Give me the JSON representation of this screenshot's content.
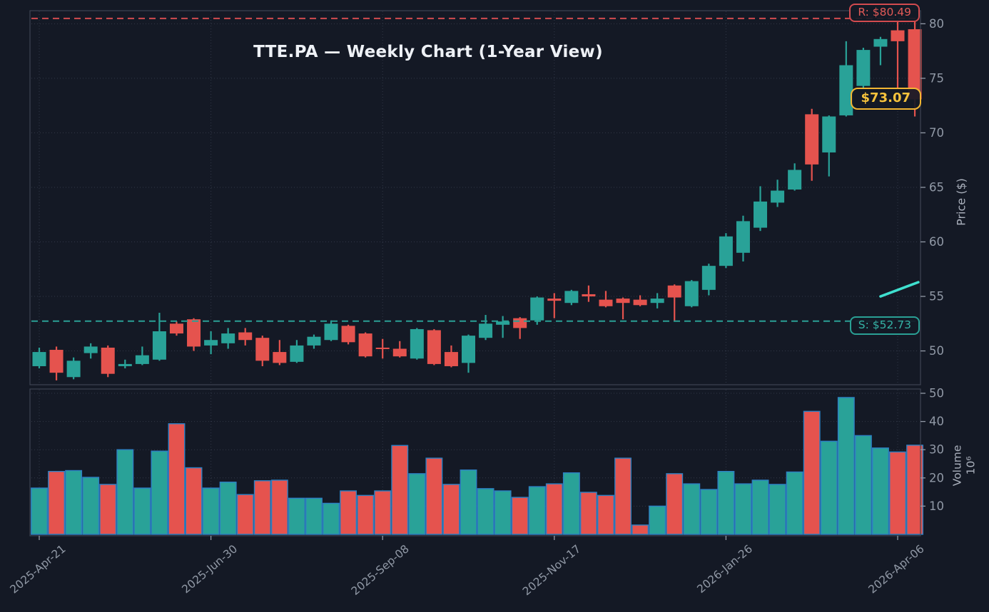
{
  "title": "TTE.PA — Weekly Chart (1-Year View)",
  "colors": {
    "background": "#141925",
    "up": "#29a298",
    "down": "#e5534e",
    "volume_border": "#2d80c4",
    "grid": "#4a5163",
    "spine": "#3e4453",
    "tick_text": "#9199a6",
    "title_text": "#eef1f6",
    "resistance": "#d24b4f",
    "support": "#2aa095",
    "last_price": "#f2b632",
    "trend": "#3fe0cf"
  },
  "price_axis": {
    "label": "Price ($)",
    "ticks": [
      50,
      55,
      60,
      65,
      70,
      75,
      80
    ]
  },
  "volume_axis": {
    "label": "Volume",
    "unit": "10⁶",
    "ticks": [
      10,
      20,
      30,
      40,
      50
    ]
  },
  "x_axis": {
    "tick_weeks": [
      0,
      10,
      20,
      30,
      40,
      50
    ],
    "tick_labels": [
      "2025-Apr-21",
      "2025-Jun-30",
      "2025-Sep-08",
      "2025-Nov-17",
      "2026-Jan-26",
      "2026-Apr-06"
    ]
  },
  "annotations": {
    "resistance": {
      "label": "R: $80.49",
      "price": 80.49
    },
    "support": {
      "label": "S: $52.73",
      "price": 52.73
    },
    "last_price": {
      "label": "$73.07",
      "price": 73.07
    },
    "trend_line": {
      "from_week": 49,
      "from_price": 55.0,
      "to_week": 51.2,
      "to_price": 56.3
    }
  },
  "chart_data": {
    "type": "candlestick",
    "symbol": "TTE.PA",
    "interval": "weekly",
    "weeks": 52,
    "price_range": [
      46.9,
      81.2
    ],
    "volume_range": [
      0,
      51.5
    ],
    "candles": [
      [
        48.6,
        50.3,
        48.4,
        49.9
      ],
      [
        50.1,
        50.4,
        47.3,
        48.0
      ],
      [
        47.6,
        49.4,
        47.4,
        49.1
      ],
      [
        49.8,
        50.7,
        49.3,
        50.4
      ],
      [
        50.3,
        50.5,
        47.6,
        47.9
      ],
      [
        48.6,
        49.2,
        48.4,
        48.8
      ],
      [
        48.8,
        50.4,
        48.7,
        49.6
      ],
      [
        49.2,
        53.5,
        49.1,
        51.8
      ],
      [
        52.5,
        52.7,
        51.4,
        51.6
      ],
      [
        52.9,
        53.0,
        50.0,
        50.4
      ],
      [
        50.5,
        51.8,
        49.7,
        51.0
      ],
      [
        50.7,
        52.1,
        50.2,
        51.6
      ],
      [
        51.7,
        52.1,
        50.5,
        51.0
      ],
      [
        51.2,
        51.4,
        48.6,
        49.1
      ],
      [
        49.9,
        51.0,
        48.7,
        48.9
      ],
      [
        49.0,
        51.0,
        48.9,
        50.5
      ],
      [
        50.5,
        51.5,
        50.2,
        51.3
      ],
      [
        51.0,
        52.8,
        50.9,
        52.5
      ],
      [
        52.3,
        52.4,
        50.6,
        50.8
      ],
      [
        51.6,
        51.7,
        49.4,
        49.5
      ],
      [
        50.3,
        51.1,
        49.3,
        50.2
      ],
      [
        50.2,
        50.9,
        49.4,
        49.5
      ],
      [
        49.3,
        52.1,
        49.2,
        52.0
      ],
      [
        51.9,
        52.0,
        48.7,
        48.8
      ],
      [
        49.9,
        50.5,
        48.5,
        48.6
      ],
      [
        48.9,
        51.5,
        48.0,
        51.4
      ],
      [
        51.2,
        53.3,
        51.0,
        52.5
      ],
      [
        52.4,
        53.2,
        51.2,
        52.7
      ],
      [
        53.0,
        53.1,
        51.1,
        52.1
      ],
      [
        52.8,
        55.0,
        52.4,
        54.9
      ],
      [
        54.8,
        55.3,
        53.0,
        54.6
      ],
      [
        54.4,
        55.6,
        54.2,
        55.5
      ],
      [
        55.2,
        56.0,
        54.5,
        55.0
      ],
      [
        54.7,
        55.5,
        54.0,
        54.1
      ],
      [
        54.8,
        54.9,
        52.9,
        54.4
      ],
      [
        54.7,
        55.1,
        54.1,
        54.2
      ],
      [
        54.4,
        55.3,
        53.9,
        54.8
      ],
      [
        56.0,
        56.1,
        52.7,
        54.9
      ],
      [
        54.1,
        56.5,
        54.0,
        56.4
      ],
      [
        55.6,
        58.0,
        55.1,
        57.8
      ],
      [
        57.8,
        60.8,
        57.6,
        60.5
      ],
      [
        59.0,
        62.4,
        58.2,
        61.9
      ],
      [
        61.3,
        65.1,
        61.0,
        63.7
      ],
      [
        63.6,
        65.7,
        63.2,
        64.7
      ],
      [
        64.8,
        67.2,
        64.7,
        66.6
      ],
      [
        71.7,
        72.2,
        65.6,
        67.1
      ],
      [
        68.2,
        71.6,
        66.0,
        71.5
      ],
      [
        71.6,
        78.4,
        71.5,
        76.2
      ],
      [
        74.3,
        77.8,
        74.0,
        77.6
      ],
      [
        77.9,
        78.8,
        76.2,
        78.6
      ],
      [
        79.4,
        80.3,
        74.1,
        78.4
      ],
      [
        79.5,
        80.3,
        71.5,
        73.07
      ]
    ],
    "volumes": [
      16.4,
      22.3,
      22.6,
      20.2,
      17.7,
      30.0,
      16.4,
      29.5,
      39.2,
      23.6,
      16.4,
      18.5,
      14.1,
      19.0,
      19.2,
      12.8,
      12.8,
      11.0,
      15.4,
      13.8,
      15.4,
      31.5,
      21.5,
      27.0,
      17.7,
      22.8,
      16.2,
      15.4,
      13.1,
      16.9,
      17.9,
      21.8,
      14.9,
      13.8,
      27.0,
      3.3,
      10.0,
      21.5,
      17.9,
      15.9,
      22.3,
      17.9,
      19.2,
      17.7,
      22.1,
      43.6,
      33.0,
      48.5,
      35.0,
      30.6,
      29.2,
      31.6
    ]
  }
}
